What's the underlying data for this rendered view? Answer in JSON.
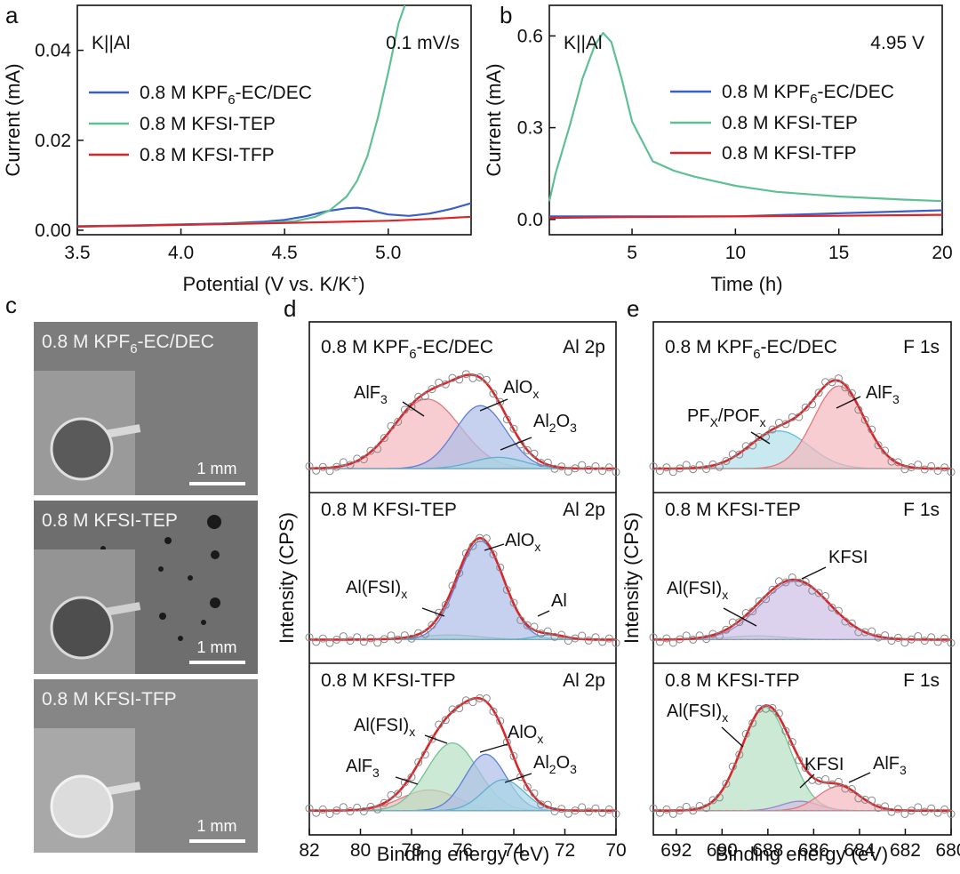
{
  "panels": {
    "a": {
      "letter": "a",
      "sample": "K||Al",
      "condition": "0.1 mV/s",
      "xlabel": "Potential (V vs. K/K",
      "xlabel_sup": "+",
      "xlabel_end": ")",
      "ylabel": "Current (mA)",
      "xticks": [
        "3.5",
        "4.0",
        "4.5",
        "5.0"
      ],
      "yticks": [
        "0.00",
        "0.02",
        "0.04"
      ]
    },
    "b": {
      "letter": "b",
      "sample": "K||Al",
      "condition": "4.95 V",
      "xlabel": "Time (h)",
      "ylabel": "Current (mA)",
      "xticks": [
        "5",
        "10",
        "15",
        "20"
      ],
      "yticks": [
        "0.0",
        "0.3",
        "0.6"
      ]
    },
    "c": {
      "letter": "c",
      "scale_label": "1 mm"
    },
    "d": {
      "letter": "d",
      "xlabel": "Binding energy (eV)",
      "ylabel": "Intensity (CPS)",
      "xticks": [
        "82",
        "80",
        "78",
        "76",
        "74",
        "72",
        "70"
      ],
      "region": "Al 2p",
      "labels": {
        "alf3": "AlF",
        "alox": "AlO",
        "al2o3_a": "Al",
        "al2o3_b": "O",
        "alfsi": "Al(FSI)",
        "al": "Al"
      }
    },
    "e": {
      "letter": "e",
      "xlabel": "Binding energy (eV)",
      "ylabel": "Intensity (CPS)",
      "xticks": [
        "692",
        "690",
        "688",
        "686",
        "684",
        "682",
        "680"
      ],
      "region": "F 1s",
      "labels": {
        "alf3": "AlF",
        "pf": "PF",
        "pof": "/POF",
        "alfsi": "Al(FSI)",
        "kfsi": "KFSI"
      }
    }
  },
  "electrolytes": {
    "kpf6_a": "0.8 M KPF",
    "kpf6_sub": "6",
    "kpf6_b": "-EC/DEC",
    "tep": "0.8 M KFSI-TEP",
    "tfp": "0.8 M KFSI-TFP"
  },
  "subscripts": {
    "three": "3",
    "x": "x",
    "X": "X",
    "two": "2"
  },
  "colors": {
    "kpf6": "#3b5fc8",
    "tep": "#5fbf95",
    "tfp": "#d9262b",
    "envelope": "#d9262b",
    "alf3_fill": "#f3b8bd",
    "alox_fill": "#aebde8",
    "al2o3_fill": "#a8d6e6",
    "alfsi_fill": "#b5e0c3",
    "kfsi_fill": "#cdbfe6",
    "pf_fill": "#b0dfe8",
    "photo_bg": "#7d7d7d"
  },
  "chart_data": [
    {
      "panel": "a",
      "type": "line",
      "xlabel": "Potential (V vs. K/K+)",
      "ylabel": "Current (mA)",
      "xlim": [
        3.5,
        5.4
      ],
      "ylim": [
        -0.001,
        0.05
      ],
      "series": [
        {
          "name": "0.8 M KPF6-EC/DEC",
          "color": "#3b5fc8",
          "x": [
            3.5,
            3.8,
            4.0,
            4.2,
            4.4,
            4.5,
            4.6,
            4.7,
            4.8,
            4.85,
            4.9,
            4.95,
            5.0,
            5.1,
            5.2,
            5.3,
            5.4
          ],
          "y": [
            0.0009,
            0.0011,
            0.0013,
            0.0015,
            0.0019,
            0.0023,
            0.0031,
            0.0042,
            0.0049,
            0.005,
            0.0047,
            0.004,
            0.0035,
            0.0032,
            0.0037,
            0.0047,
            0.006
          ]
        },
        {
          "name": "0.8 M KFSI-TEP",
          "color": "#5fbf95",
          "x": [
            3.5,
            4.0,
            4.4,
            4.55,
            4.65,
            4.72,
            4.8,
            4.85,
            4.9,
            4.95,
            5.0,
            5.05,
            5.08
          ],
          "y": [
            0.0008,
            0.0012,
            0.0016,
            0.002,
            0.003,
            0.0045,
            0.0075,
            0.011,
            0.0165,
            0.025,
            0.035,
            0.046,
            0.05
          ]
        },
        {
          "name": "0.8 M KFSI-TFP",
          "color": "#d9262b",
          "x": [
            3.5,
            4.0,
            4.5,
            5.0,
            5.2,
            5.4
          ],
          "y": [
            0.0008,
            0.0012,
            0.0016,
            0.0021,
            0.0025,
            0.003
          ]
        }
      ]
    },
    {
      "panel": "b",
      "type": "line",
      "xlabel": "Time (h)",
      "ylabel": "Current (mA)",
      "xlim": [
        1,
        20
      ],
      "ylim": [
        -0.05,
        0.7
      ],
      "series": [
        {
          "name": "0.8 M KPF6-EC/DEC",
          "color": "#3b5fc8",
          "x": [
            1,
            5,
            10,
            15,
            20
          ],
          "y": [
            0.01,
            0.01,
            0.01,
            0.02,
            0.03
          ]
        },
        {
          "name": "0.8 M KFSI-TEP",
          "color": "#5fbf95",
          "x": [
            1,
            1.3,
            2,
            2.6,
            3.2,
            3.6,
            4.0,
            4.5,
            5,
            6,
            7,
            8,
            10,
            12,
            15,
            18,
            20
          ],
          "y": [
            0.06,
            0.15,
            0.31,
            0.46,
            0.57,
            0.61,
            0.58,
            0.46,
            0.32,
            0.19,
            0.16,
            0.14,
            0.11,
            0.09,
            0.075,
            0.065,
            0.06
          ]
        },
        {
          "name": "0.8 M KFSI-TFP",
          "color": "#d9262b",
          "x": [
            1,
            5,
            10,
            15,
            20
          ],
          "y": [
            0.005,
            0.008,
            0.01,
            0.012,
            0.015
          ]
        }
      ]
    },
    {
      "panel": "d",
      "type": "line",
      "xlabel": "Binding energy (eV)",
      "ylabel": "Intensity (CPS)",
      "xlim": [
        82,
        70
      ],
      "subplots": [
        {
          "electrolyte": "0.8 M KPF6-EC/DEC",
          "region": "Al 2p",
          "baseline": 0.05,
          "components": [
            {
              "name": "AlF3",
              "center": 77.4,
              "height": 0.74,
              "width": 1.3
            },
            {
              "name": "AlOx",
              "center": 75.3,
              "height": 0.67,
              "width": 1.0
            },
            {
              "name": "Al2O3",
              "center": 74.6,
              "height": 0.12,
              "width": 1.0
            }
          ]
        },
        {
          "electrolyte": "0.8 M KFSI-TEP",
          "region": "Al 2p",
          "baseline": 0.05,
          "components": [
            {
              "name": "Al(FSI)x",
              "center": 76.5,
              "height": 0.05,
              "width": 1.2
            },
            {
              "name": "AlOx",
              "center": 75.3,
              "height": 1.05,
              "width": 0.9
            },
            {
              "name": "Al",
              "center": 72.6,
              "height": 0.05,
              "width": 0.6
            }
          ]
        },
        {
          "electrolyte": "0.8 M KFSI-TFP",
          "region": "Al 2p",
          "baseline": 0.05,
          "components": [
            {
              "name": "AlF3",
              "center": 77.3,
              "height": 0.22,
              "width": 1.1
            },
            {
              "name": "Al(FSI)x",
              "center": 76.4,
              "height": 0.72,
              "width": 1.0
            },
            {
              "name": "AlOx",
              "center": 75.1,
              "height": 0.6,
              "width": 0.8
            },
            {
              "name": "Al2O3",
              "center": 74.4,
              "height": 0.33,
              "width": 0.8
            }
          ]
        }
      ]
    },
    {
      "panel": "e",
      "type": "line",
      "xlabel": "Binding energy (eV)",
      "ylabel": "Intensity (CPS)",
      "xlim": [
        693,
        680
      ],
      "subplots": [
        {
          "electrolyte": "0.8 M KPF6-EC/DEC",
          "region": "F 1s",
          "baseline": 0.05,
          "components": [
            {
              "name": "PFX/POFx",
              "center": 687.5,
              "height": 0.4,
              "width": 1.3
            },
            {
              "name": "AlF3",
              "center": 684.9,
              "height": 0.88,
              "width": 1.1
            }
          ]
        },
        {
          "electrolyte": "0.8 M KFSI-TEP",
          "region": "F 1s",
          "baseline": 0.05,
          "components": [
            {
              "name": "Al(FSI)x",
              "center": 688.5,
              "height": 0.04,
              "width": 1.3
            },
            {
              "name": "KFSI",
              "center": 686.8,
              "height": 0.62,
              "width": 1.5
            }
          ]
        },
        {
          "electrolyte": "0.8 M KFSI-TFP",
          "region": "F 1s",
          "baseline": 0.05,
          "components": [
            {
              "name": "Al(FSI)x",
              "center": 688.1,
              "height": 1.1,
              "width": 1.05
            },
            {
              "name": "KFSI",
              "center": 686.6,
              "height": 0.1,
              "width": 0.8
            },
            {
              "name": "AlF3",
              "center": 684.9,
              "height": 0.26,
              "width": 0.9
            }
          ]
        }
      ]
    }
  ]
}
